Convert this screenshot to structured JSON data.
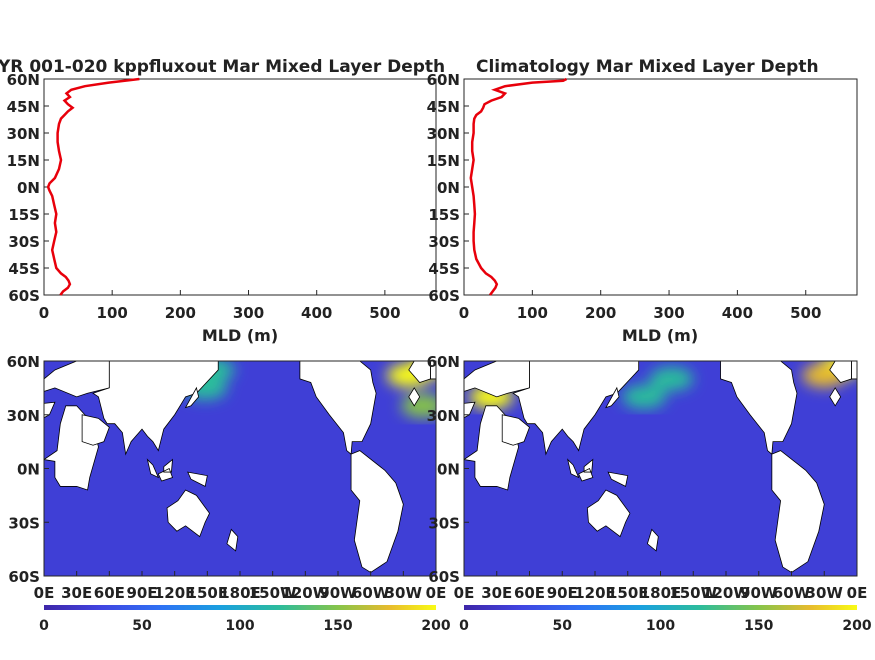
{
  "colors": {
    "profile_line": "#e8000b",
    "colormap": [
      "#3e26a8",
      "#4143e0",
      "#2e72f4",
      "#1aa0df",
      "#2cbc9c",
      "#86c44a",
      "#e7bb2e",
      "#f9fb15"
    ],
    "land": "#ffffff",
    "coast": "#000000"
  },
  "chart_data": [
    {
      "type": "line",
      "title": "YR 001-020 kppfluxout Mar Mixed Layer Depth",
      "xlabel": "MLD (m)",
      "ylabel": "",
      "xlim": [
        0,
        575
      ],
      "xticks": [
        "0",
        "100",
        "200",
        "300",
        "400",
        "500"
      ],
      "ylim": [
        -60,
        60
      ],
      "yticks": [
        "60N",
        "45N",
        "30N",
        "15N",
        "0N",
        "15S",
        "30S",
        "45S",
        "60S"
      ],
      "grid": false,
      "series": [
        {
          "lat": [
            60,
            58,
            56,
            54,
            52,
            50,
            48,
            46,
            44,
            42,
            40,
            38,
            35,
            30,
            25,
            20,
            15,
            10,
            5,
            2,
            0,
            -2,
            -5,
            -10,
            -15,
            -20,
            -25,
            -30,
            -35,
            -40,
            -45,
            -48,
            -50,
            -52,
            -54,
            -56,
            -58,
            -60
          ],
          "mld": [
            140,
            95,
            60,
            40,
            33,
            38,
            30,
            35,
            42,
            35,
            30,
            25,
            22,
            20,
            20,
            22,
            25,
            22,
            16,
            8,
            6,
            8,
            12,
            15,
            18,
            16,
            18,
            15,
            12,
            15,
            18,
            25,
            32,
            36,
            38,
            35,
            28,
            24
          ]
        }
      ]
    },
    {
      "type": "line",
      "title": "Climatology Mar Mixed Layer Depth",
      "xlabel": "MLD (m)",
      "ylabel": "",
      "xlim": [
        0,
        575
      ],
      "xticks": [
        "0",
        "100",
        "200",
        "300",
        "400",
        "500"
      ],
      "ylim": [
        -60,
        60
      ],
      "yticks": [
        "60N",
        "45N",
        "30N",
        "15N",
        "0N",
        "15S",
        "30S",
        "45S",
        "60S"
      ],
      "grid": false,
      "series": [
        {
          "lat": [
            60,
            59,
            58,
            56,
            54,
            52,
            50,
            48,
            46,
            44,
            42,
            40,
            38,
            35,
            30,
            25,
            20,
            15,
            10,
            5,
            0,
            -5,
            -10,
            -15,
            -20,
            -25,
            -30,
            -35,
            -40,
            -45,
            -48,
            -50,
            -52,
            -54,
            -56,
            -58,
            -60
          ],
          "mld": [
            150,
            145,
            100,
            60,
            45,
            60,
            55,
            40,
            30,
            28,
            25,
            18,
            15,
            14,
            14,
            12,
            12,
            14,
            12,
            10,
            12,
            14,
            15,
            16,
            15,
            14,
            14,
            15,
            18,
            25,
            32,
            40,
            45,
            48,
            46,
            42,
            38
          ]
        }
      ]
    },
    {
      "type": "heatmap",
      "title": "",
      "xlim": [
        0,
        360
      ],
      "ylim": [
        -60,
        60
      ],
      "xticks": [
        "0E",
        "30E",
        "60E",
        "90E",
        "120E",
        "150E",
        "180E",
        "150W",
        "120W",
        "90W",
        "60W",
        "30W",
        "0E"
      ],
      "yticks": [
        "60N",
        "30N",
        "0N",
        "30S",
        "60S"
      ],
      "colorbar": {
        "min": 0,
        "max": 200,
        "ticks": [
          "0",
          "50",
          "100",
          "150",
          "200"
        ]
      },
      "hotspots": [
        {
          "lon": 335,
          "lat": 52,
          "mld": 200
        },
        {
          "lon": 355,
          "lat": 57,
          "mld": 190
        },
        {
          "lon": 348,
          "lat": 35,
          "mld": 150
        },
        {
          "lon": 148,
          "lat": 45,
          "mld": 110
        },
        {
          "lon": 155,
          "lat": 55,
          "mld": 100
        }
      ]
    },
    {
      "type": "heatmap",
      "title": "",
      "xlim": [
        0,
        360
      ],
      "ylim": [
        -60,
        60
      ],
      "xticks": [
        "0E",
        "30E",
        "60E",
        "90E",
        "120E",
        "150E",
        "180E",
        "150W",
        "120W",
        "90W",
        "60W",
        "30W",
        "0E"
      ],
      "yticks": [
        "60N",
        "30N",
        "0N",
        "30S",
        "60S"
      ],
      "colorbar": {
        "min": 0,
        "max": 200,
        "ticks": [
          "0",
          "50",
          "100",
          "150",
          "200"
        ]
      },
      "hotspots": [
        {
          "lon": 345,
          "lat": 57,
          "mld": 200
        },
        {
          "lon": 330,
          "lat": 52,
          "mld": 170
        },
        {
          "lon": 165,
          "lat": 40,
          "mld": 120
        },
        {
          "lon": 190,
          "lat": 50,
          "mld": 110
        },
        {
          "lon": 25,
          "lat": 40,
          "mld": 200
        }
      ]
    }
  ]
}
